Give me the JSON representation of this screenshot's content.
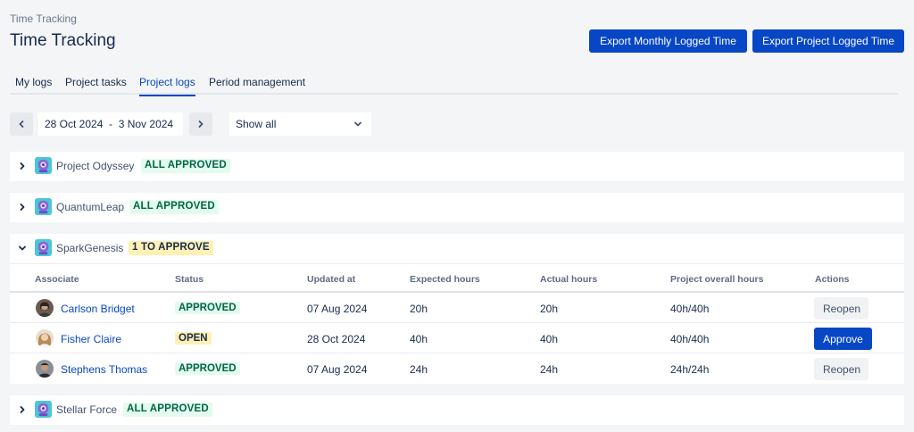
{
  "header": {
    "breadcrumb": "Time Tracking",
    "title": "Time Tracking",
    "export_monthly_label": "Export Monthly Logged Time",
    "export_project_label": "Export Project Logged Time"
  },
  "tabs": [
    {
      "label": "My logs",
      "active": false
    },
    {
      "label": "Project tasks",
      "active": false
    },
    {
      "label": "Project logs",
      "active": true
    },
    {
      "label": "Period management",
      "active": false
    }
  ],
  "filters": {
    "date_range": "28 Oct 2024  -  3 Nov 2024",
    "show_filter": "Show all"
  },
  "projects": [
    {
      "name": "Project Odyssey",
      "status": "ALL APPROVED",
      "expanded": false
    },
    {
      "name": "QuantumLeap",
      "status": "ALL APPROVED",
      "expanded": false
    },
    {
      "name": "SparkGenesis",
      "status": "1 TO APPROVE",
      "expanded": true
    },
    {
      "name": "Stellar Force",
      "status": "ALL APPROVED",
      "expanded": false
    }
  ],
  "table": {
    "columns": [
      "Associate",
      "Status",
      "Updated at",
      "Expected hours",
      "Actual hours",
      "Project overall hours",
      "Actions"
    ],
    "rows": [
      {
        "associate": "Carlson Bridget",
        "status": "APPROVED",
        "updated_at": "07 Aug 2024",
        "expected": "20h",
        "actual": "20h",
        "overall": "40h/40h",
        "action": "Reopen"
      },
      {
        "associate": "Fisher Claire",
        "status": "OPEN",
        "updated_at": "28 Oct 2024",
        "expected": "40h",
        "actual": "40h",
        "overall": "40h/40h",
        "action": "Approve"
      },
      {
        "associate": "Stephens Thomas",
        "status": "APPROVED",
        "updated_at": "07 Aug 2024",
        "expected": "24h",
        "actual": "24h",
        "overall": "24h/24h",
        "action": "Reopen"
      }
    ]
  },
  "colors": {
    "primary": "#0747c5",
    "approved_bg": "#e3fcef",
    "approved_text": "#006644",
    "pending_bg": "#fff0b3"
  },
  "icons": {
    "expand": "chevron-right-icon",
    "collapse": "chevron-down-icon",
    "project": "project-robot-icon"
  }
}
